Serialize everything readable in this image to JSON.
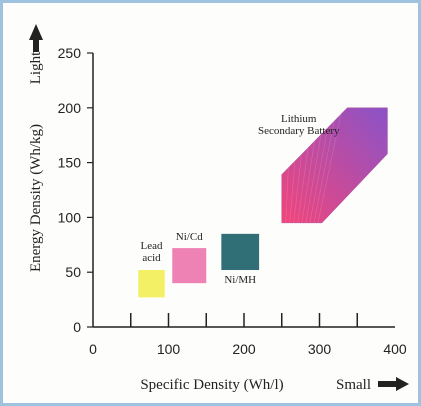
{
  "chart_data": {
    "type": "scatter",
    "xlabel": "Specific Density (Wh/l)",
    "ylabel": "Energy Density (Wh/kg)",
    "x_direction_label": "Small",
    "y_direction_label": "Light",
    "xlim": [
      0,
      400
    ],
    "ylim": [
      0,
      250
    ],
    "xticks": [
      "0",
      "100",
      "200",
      "300",
      "400"
    ],
    "yticks": [
      "0",
      "50",
      "100",
      "150",
      "200",
      "250"
    ],
    "grid": false,
    "legend": "none",
    "regions": [
      {
        "name": "Lead acid",
        "label": "Lead\nacid",
        "x_range": [
          60,
          95
        ],
        "y_range": [
          27,
          52
        ],
        "color": "#f3f066"
      },
      {
        "name": "Ni/Cd",
        "label": "Ni/Cd",
        "x_range": [
          105,
          150
        ],
        "y_range": [
          40,
          72
        ],
        "color": "#ee82b4"
      },
      {
        "name": "Ni/MH",
        "label": "Ni/MH",
        "x_range": [
          170,
          220
        ],
        "y_range": [
          52,
          85
        ],
        "color": "#2f6f75"
      },
      {
        "name": "Lithium Secondary Battery",
        "label": "Lithium\nSecondary Battery",
        "x_range": [
          250,
          390
        ],
        "y_range": [
          95,
          200
        ],
        "color_low": "#f2457a",
        "color_high": "#8a53c8"
      }
    ]
  }
}
